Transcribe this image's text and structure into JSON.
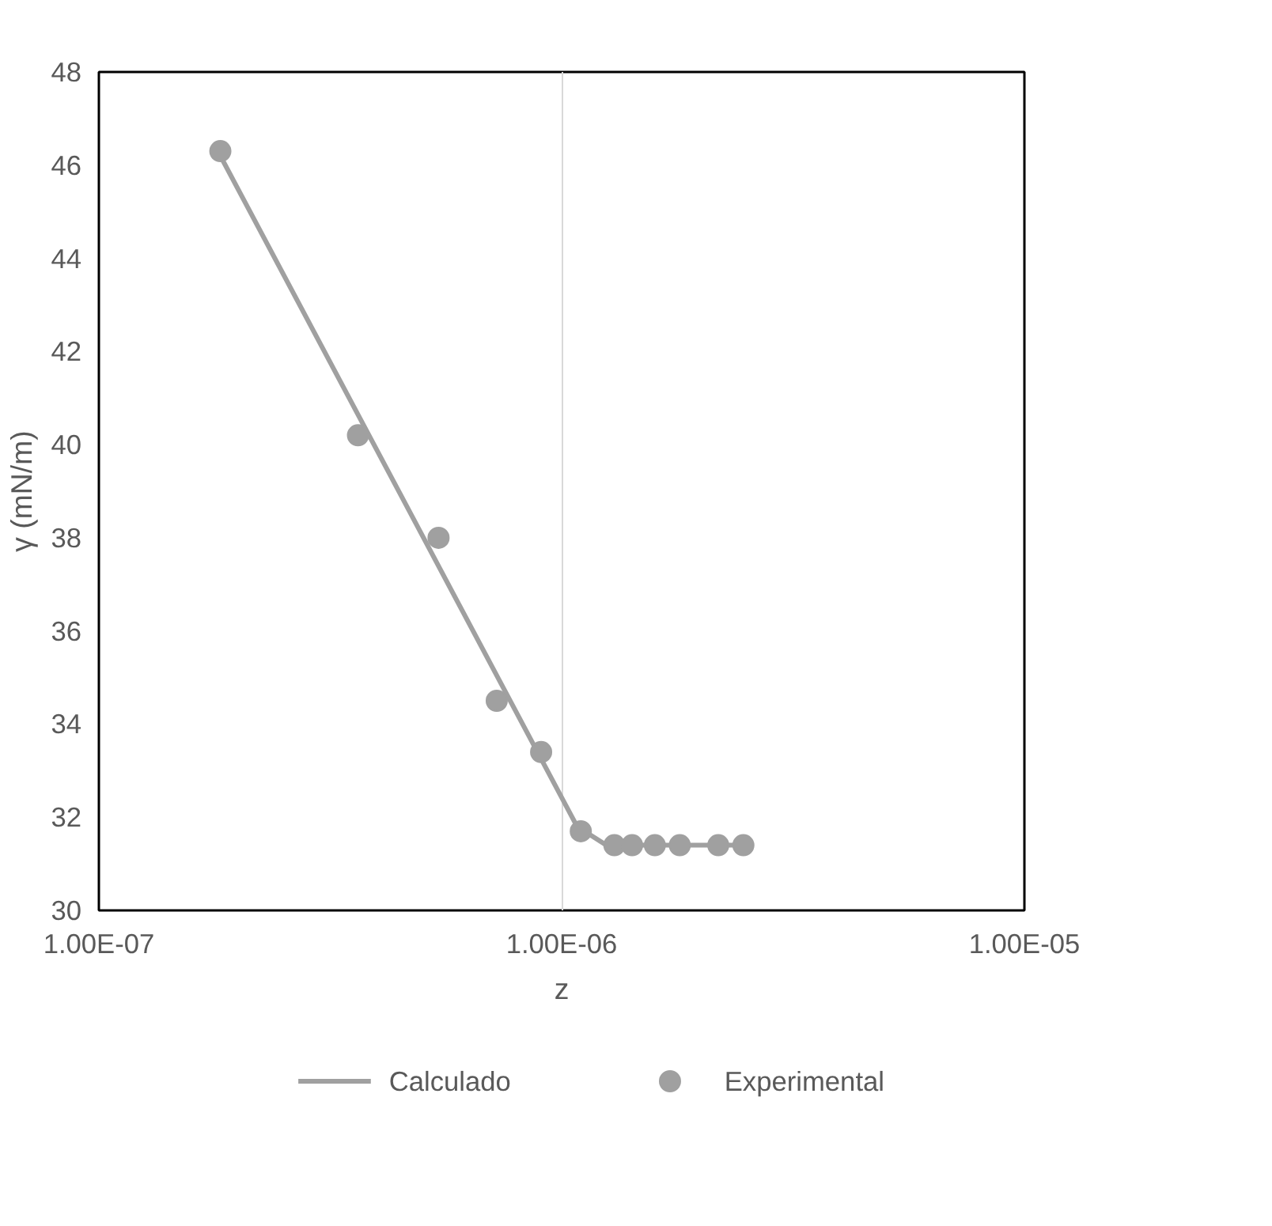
{
  "chart_data": {
    "type": "scatter",
    "xlabel": "z",
    "ylabel": "γ (mN/m)",
    "log": "x",
    "xlim": [
      1e-07,
      1e-05
    ],
    "xticks": [
      {
        "value": 1e-07,
        "label": "1.00E-07"
      },
      {
        "value": 1e-06,
        "label": "1.00E-06"
      },
      {
        "value": 1e-05,
        "label": "1.00E-05"
      }
    ],
    "ylim": [
      30,
      48
    ],
    "yticks": [
      30,
      32,
      34,
      36,
      38,
      40,
      42,
      44,
      46,
      48
    ],
    "grid": "x",
    "legend": "bottom",
    "series": [
      {
        "name": "Calculado",
        "type": "line",
        "color": "#a0a0a0",
        "marker": "none",
        "line_style": "solid",
        "x": [
          1.83e-07,
          1.08e-06,
          1.25e-06,
          1.4e-06,
          2.47e-06
        ],
        "values": [
          46.2,
          31.8,
          31.4,
          31.4,
          31.4
        ]
      },
      {
        "name": "Experimental",
        "type": "scatter",
        "color": "#a0a0a0",
        "marker": "circle",
        "x": [
          1.83e-07,
          3.63e-07,
          5.42e-07,
          7.24e-07,
          9.03e-07,
          1.1e-06,
          1.3e-06,
          1.42e-06,
          1.59e-06,
          1.8e-06,
          2.18e-06,
          2.47e-06
        ],
        "values": [
          46.3,
          40.2,
          38.0,
          34.5,
          33.4,
          31.7,
          31.4,
          31.4,
          31.4,
          31.4,
          31.4,
          31.4
        ]
      }
    ]
  }
}
